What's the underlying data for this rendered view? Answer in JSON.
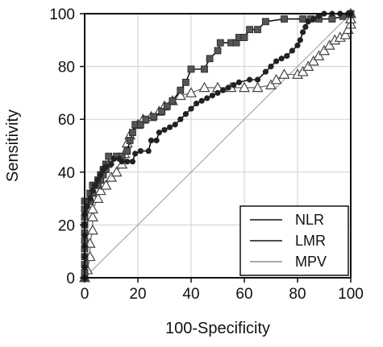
{
  "chart_data": {
    "type": "line",
    "title": "",
    "xlabel": "100-Specificity",
    "ylabel": "Sensitivity",
    "xlim": [
      0,
      100
    ],
    "ylim": [
      0,
      100
    ],
    "xticks": [
      "0",
      "20",
      "40",
      "60",
      "80",
      "100"
    ],
    "yticks": [
      "0",
      "20",
      "40",
      "60",
      "80",
      "100"
    ],
    "grid": true,
    "legend_position": "bottom-right",
    "reference_line": [
      [
        0,
        0
      ],
      [
        100,
        100
      ]
    ],
    "series": [
      {
        "name": "NLR",
        "marker": "square",
        "color": "#555555",
        "points": [
          [
            0,
            0
          ],
          [
            0,
            2
          ],
          [
            0,
            5
          ],
          [
            0,
            8
          ],
          [
            0,
            11
          ],
          [
            0,
            14
          ],
          [
            0,
            17
          ],
          [
            0,
            20
          ],
          [
            0,
            23
          ],
          [
            0,
            26
          ],
          [
            0,
            29
          ],
          [
            1,
            29
          ],
          [
            2,
            29
          ],
          [
            2,
            32
          ],
          [
            3,
            32
          ],
          [
            3,
            35
          ],
          [
            4,
            35
          ],
          [
            5,
            35
          ],
          [
            5,
            37
          ],
          [
            6,
            37
          ],
          [
            6,
            39
          ],
          [
            7,
            39
          ],
          [
            7,
            41
          ],
          [
            8,
            41
          ],
          [
            8,
            43
          ],
          [
            9,
            43
          ],
          [
            9,
            46
          ],
          [
            12,
            46
          ],
          [
            14,
            46
          ],
          [
            16,
            48
          ],
          [
            17,
            52
          ],
          [
            18,
            55
          ],
          [
            19,
            58
          ],
          [
            21,
            58
          ],
          [
            23,
            60
          ],
          [
            26,
            61
          ],
          [
            29,
            63
          ],
          [
            31,
            65
          ],
          [
            33,
            67
          ],
          [
            36,
            71
          ],
          [
            38,
            74
          ],
          [
            40,
            79
          ],
          [
            45,
            79
          ],
          [
            47,
            83
          ],
          [
            50,
            86
          ],
          [
            51,
            89
          ],
          [
            55,
            89
          ],
          [
            57,
            89
          ],
          [
            58,
            91
          ],
          [
            60,
            91
          ],
          [
            62,
            94
          ],
          [
            65,
            94
          ],
          [
            68,
            97
          ],
          [
            75,
            98
          ],
          [
            82,
            98
          ],
          [
            85,
            98
          ],
          [
            88,
            98
          ],
          [
            93,
            98
          ],
          [
            97,
            99
          ],
          [
            100,
            100
          ]
        ]
      },
      {
        "name": "LMR",
        "marker": "circle",
        "color": "#222222",
        "points": [
          [
            0,
            0
          ],
          [
            0,
            4
          ],
          [
            0,
            8
          ],
          [
            0,
            12
          ],
          [
            0,
            16
          ],
          [
            0,
            20
          ],
          [
            0,
            24
          ],
          [
            1,
            27
          ],
          [
            2,
            30
          ],
          [
            3,
            33
          ],
          [
            4,
            35
          ],
          [
            5,
            37
          ],
          [
            6,
            39
          ],
          [
            7,
            41
          ],
          [
            8,
            42
          ],
          [
            10,
            43
          ],
          [
            11,
            45
          ],
          [
            13,
            45
          ],
          [
            14,
            44
          ],
          [
            16,
            44
          ],
          [
            18,
            44
          ],
          [
            19,
            47
          ],
          [
            21,
            48
          ],
          [
            24,
            48
          ],
          [
            25,
            52
          ],
          [
            27,
            52
          ],
          [
            28,
            55
          ],
          [
            30,
            56
          ],
          [
            32,
            57
          ],
          [
            34,
            58
          ],
          [
            36,
            60
          ],
          [
            38,
            62
          ],
          [
            40,
            64
          ],
          [
            42,
            66
          ],
          [
            44,
            67
          ],
          [
            46,
            68
          ],
          [
            48,
            69
          ],
          [
            50,
            70
          ],
          [
            52,
            71
          ],
          [
            54,
            72
          ],
          [
            56,
            73
          ],
          [
            58,
            74
          ],
          [
            62,
            75
          ],
          [
            65,
            75
          ],
          [
            68,
            78
          ],
          [
            70,
            80
          ],
          [
            72,
            82
          ],
          [
            74,
            83
          ],
          [
            76,
            84
          ],
          [
            78,
            86
          ],
          [
            80,
            88
          ],
          [
            81,
            90
          ],
          [
            82,
            93
          ],
          [
            83,
            95
          ],
          [
            84,
            97
          ],
          [
            86,
            98
          ],
          [
            88,
            99
          ],
          [
            90,
            100
          ],
          [
            93,
            100
          ],
          [
            96,
            100
          ],
          [
            99,
            100
          ],
          [
            100,
            100
          ]
        ]
      },
      {
        "name": "MPV",
        "marker": "triangle",
        "color": "#888888",
        "points": [
          [
            0,
            0
          ],
          [
            1,
            3
          ],
          [
            2,
            8
          ],
          [
            2,
            13
          ],
          [
            3,
            18
          ],
          [
            3,
            23
          ],
          [
            3,
            26
          ],
          [
            5,
            30
          ],
          [
            6,
            33
          ],
          [
            8,
            35
          ],
          [
            10,
            38
          ],
          [
            12,
            40
          ],
          [
            14,
            43
          ],
          [
            15,
            47
          ],
          [
            16,
            51
          ],
          [
            17,
            54
          ],
          [
            20,
            58
          ],
          [
            22,
            60
          ],
          [
            25,
            61
          ],
          [
            28,
            63
          ],
          [
            30,
            65
          ],
          [
            33,
            67
          ],
          [
            36,
            69
          ],
          [
            40,
            70
          ],
          [
            45,
            72
          ],
          [
            50,
            72
          ],
          [
            55,
            72
          ],
          [
            60,
            72
          ],
          [
            65,
            72
          ],
          [
            70,
            73
          ],
          [
            72,
            75
          ],
          [
            75,
            77
          ],
          [
            80,
            77
          ],
          [
            82,
            78
          ],
          [
            84,
            80
          ],
          [
            86,
            82
          ],
          [
            88,
            84
          ],
          [
            90,
            86
          ],
          [
            92,
            88
          ],
          [
            94,
            90
          ],
          [
            96,
            91
          ],
          [
            98,
            92
          ],
          [
            99,
            94
          ],
          [
            100,
            96
          ],
          [
            100,
            98
          ],
          [
            100,
            100
          ]
        ]
      }
    ]
  }
}
